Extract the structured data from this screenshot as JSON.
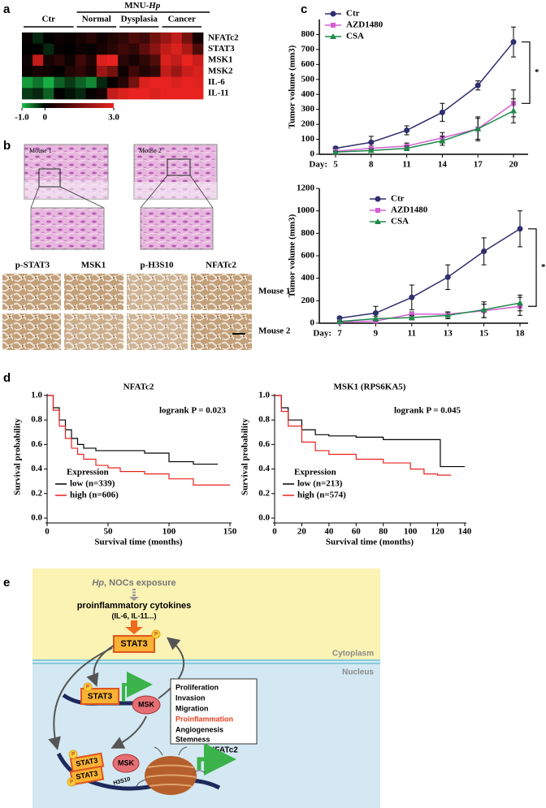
{
  "panel_labels": [
    "a",
    "b",
    "c",
    "d",
    "e"
  ],
  "chart_data": [
    {
      "type": "heatmap",
      "super_group": {
        "text": "MNU-",
        "italic": "Hp"
      },
      "groups": [
        {
          "name": "Ctr",
          "span": 5
        },
        {
          "name": "Normal",
          "span": 4
        },
        {
          "name": "Dysplasia",
          "span": 4
        },
        {
          "name": "Cancer",
          "span": 4
        }
      ],
      "rows": [
        "NFATc2",
        "STAT3",
        "MSK1",
        "MSK2",
        "IL-6",
        "IL-11"
      ],
      "values": [
        [
          0.1,
          -0.2,
          0.0,
          0.2,
          0.1,
          0.3,
          0.5,
          0.2,
          0.4,
          0.6,
          1.0,
          0.8,
          1.5,
          2.0,
          2.5,
          1.5,
          0.3
        ],
        [
          0.0,
          0.0,
          -0.2,
          0.1,
          0.0,
          0.2,
          0.1,
          0.3,
          0.5,
          0.8,
          0.6,
          1.2,
          1.8,
          2.5,
          2.8,
          2.2,
          1.0
        ],
        [
          0.2,
          2.5,
          0.3,
          0.5,
          0.2,
          0.8,
          0.4,
          2.8,
          3.0,
          0.5,
          0.3,
          0.6,
          1.0,
          2.8,
          2.5,
          3.0,
          2.6
        ],
        [
          0.1,
          0.3,
          0.2,
          0.0,
          0.4,
          0.6,
          0.3,
          2.0,
          1.5,
          0.2,
          0.8,
          0.4,
          0.6,
          2.5,
          2.0,
          2.6,
          2.8
        ],
        [
          -0.8,
          -0.6,
          -0.9,
          -0.5,
          -0.3,
          -0.5,
          -0.7,
          -0.2,
          0.1,
          0.5,
          1.5,
          2.8,
          3.0,
          3.0,
          2.8,
          3.0,
          2.9
        ],
        [
          -0.3,
          -0.2,
          -0.5,
          0.0,
          -0.1,
          -0.2,
          0.1,
          0.3,
          2.5,
          2.8,
          3.0,
          3.0,
          2.8,
          3.0,
          3.0,
          3.0,
          3.0
        ]
      ],
      "colorbar": {
        "lim": [
          -1,
          3
        ],
        "colors": [
          "#19c24a",
          "#000000",
          "#e8231f"
        ],
        "ticks": [
          {
            "value": -1,
            "label": "-1.0"
          },
          0,
          {
            "value": 3,
            "label": "3.0"
          }
        ]
      }
    },
    {
      "type": "line",
      "xlabel": "Day:",
      "categories": [
        "5",
        "8",
        "11",
        "14",
        "17",
        "20"
      ],
      "ylabel": "Tumor volume (mm3)",
      "ylim": [
        0,
        900
      ],
      "yticks": [
        0,
        100,
        200,
        300,
        400,
        500,
        600,
        700,
        800
      ],
      "annotation": "*",
      "series": [
        {
          "name": "Ctr",
          "color": "#2e2f6e",
          "marker": "circle",
          "values": [
            40,
            80,
            160,
            280,
            460,
            750
          ],
          "errors": [
            10,
            40,
            30,
            60,
            30,
            100
          ]
        },
        {
          "name": "AZD1480",
          "color": "#d35fd3",
          "marker": "square",
          "values": [
            20,
            40,
            55,
            110,
            170,
            340
          ],
          "errors": [
            5,
            15,
            20,
            35,
            70,
            90
          ]
        },
        {
          "name": "CSA",
          "color": "#1f8a4c",
          "marker": "triangle",
          "values": [
            15,
            25,
            40,
            90,
            170,
            290
          ],
          "errors": [
            5,
            10,
            15,
            30,
            80,
            80
          ]
        }
      ]
    },
    {
      "type": "line",
      "xlabel": "Day:",
      "categories": [
        "7",
        "9",
        "11",
        "13",
        "15",
        "18"
      ],
      "ylabel": "Tumor volume (mm3)",
      "ylim": [
        0,
        1200
      ],
      "yticks": [
        0,
        200,
        400,
        600,
        800,
        1000,
        1200
      ],
      "annotation": "*",
      "series": [
        {
          "name": "Ctr",
          "color": "#2e2f6e",
          "marker": "circle",
          "values": [
            45,
            90,
            230,
            410,
            640,
            840
          ],
          "errors": [
            10,
            60,
            110,
            110,
            120,
            160
          ]
        },
        {
          "name": "AZD1480",
          "color": "#d35fd3",
          "marker": "square",
          "values": [
            10,
            20,
            80,
            80,
            110,
            150
          ],
          "errors": [
            5,
            15,
            20,
            20,
            60,
            80
          ]
        },
        {
          "name": "CSA",
          "color": "#1f8a4c",
          "marker": "triangle",
          "values": [
            15,
            40,
            50,
            70,
            120,
            180
          ],
          "errors": [
            5,
            20,
            20,
            30,
            70,
            70
          ]
        }
      ]
    },
    {
      "type": "km",
      "title": "NFATc2",
      "annotation": "logrank P = 0.023",
      "xlabel": "Survival time (months)",
      "ylabel": "Survival probability",
      "xlim": [
        0,
        150
      ],
      "xticks": [
        0,
        50,
        100,
        150
      ],
      "ylim": [
        0,
        1
      ],
      "yticks": [
        {
          "value": 0,
          "label": "0.0"
        },
        {
          "value": 0.2,
          "label": "0.2"
        },
        {
          "value": 0.4,
          "label": "0.4"
        },
        {
          "value": 0.6,
          "label": "0.6"
        },
        {
          "value": 0.8,
          "label": "0.8"
        },
        {
          "value": 1,
          "label": "1.0"
        }
      ],
      "legend_title": "Expression",
      "series": [
        {
          "name": "low (n=339)",
          "color": "#000000",
          "x": [
            0,
            5,
            10,
            15,
            20,
            25,
            30,
            40,
            50,
            60,
            80,
            100,
            120,
            140
          ],
          "values": [
            1,
            0.9,
            0.8,
            0.72,
            0.65,
            0.6,
            0.57,
            0.55,
            0.55,
            0.55,
            0.53,
            0.46,
            0.44,
            0.44
          ]
        },
        {
          "name": "high (n=606)",
          "color": "#e8231f",
          "x": [
            0,
            5,
            10,
            15,
            20,
            25,
            30,
            40,
            50,
            60,
            80,
            100,
            120,
            140,
            150
          ],
          "values": [
            1,
            0.88,
            0.75,
            0.65,
            0.57,
            0.52,
            0.48,
            0.43,
            0.41,
            0.38,
            0.36,
            0.32,
            0.27,
            0.27,
            0.27
          ]
        }
      ]
    },
    {
      "type": "km",
      "title": "MSK1 (RPS6KA5)",
      "annotation": "logrank P = 0.045",
      "xlabel": "Survival time (months)",
      "ylabel": "Survival probability",
      "xlim": [
        0,
        140
      ],
      "xticks": [
        0,
        20,
        40,
        60,
        80,
        100,
        120,
        140
      ],
      "ylim": [
        0,
        1
      ],
      "yticks": [
        {
          "value": 0,
          "label": "0.0"
        },
        {
          "value": 0.2,
          "label": "0.2"
        },
        {
          "value": 0.4,
          "label": "0.4"
        },
        {
          "value": 0.6,
          "label": "0.6"
        },
        {
          "value": 0.8,
          "label": "0.8"
        },
        {
          "value": 1,
          "label": "1.0"
        }
      ],
      "legend_title": "Expression",
      "series": [
        {
          "name": "low (n=213)",
          "color": "#000000",
          "x": [
            0,
            5,
            10,
            20,
            30,
            40,
            60,
            80,
            100,
            110,
            120,
            122,
            140
          ],
          "values": [
            1,
            0.9,
            0.8,
            0.72,
            0.68,
            0.67,
            0.66,
            0.64,
            0.64,
            0.64,
            0.64,
            0.42,
            0.42
          ]
        },
        {
          "name": "high (n=574)",
          "color": "#e8231f",
          "x": [
            0,
            5,
            10,
            20,
            30,
            40,
            60,
            80,
            100,
            110,
            120,
            130
          ],
          "values": [
            1,
            0.87,
            0.75,
            0.62,
            0.55,
            0.52,
            0.48,
            0.45,
            0.4,
            0.36,
            0.35,
            0.35
          ]
        }
      ]
    }
  ],
  "histology": {
    "overview": [
      "Mouse 1",
      "Mouse 2"
    ],
    "stains": [
      "p-STAT3",
      "MSK1",
      "p-H3S10",
      "NFATc2"
    ],
    "rows": [
      "Mouse 1",
      "Mouse 2"
    ]
  },
  "diagram": {
    "exposure": {
      "italic": "Hp",
      "text": ", NOCs exposure"
    },
    "cytokines": "proinflammatory cytokines",
    "cytokine_list": "(IL-6, IL-11...)",
    "stat3_cyto": "STAT3",
    "phospho": [
      "P",
      "P",
      "P",
      "P"
    ],
    "cytoplasm": "Cytoplasm",
    "nucleus": "Nucleus",
    "stat3_nuc": "STAT3",
    "msk": "MSK",
    "outcomes": [
      "Proliferation",
      "Invasion",
      "Migration",
      "Proinflammation",
      "Angiogenesis",
      "Stemness"
    ],
    "nfatc2": "NFATc2",
    "dimer": [
      "STAT3",
      "STAT3"
    ],
    "msk_chromatin": "MSK",
    "histone": "H3S10"
  }
}
